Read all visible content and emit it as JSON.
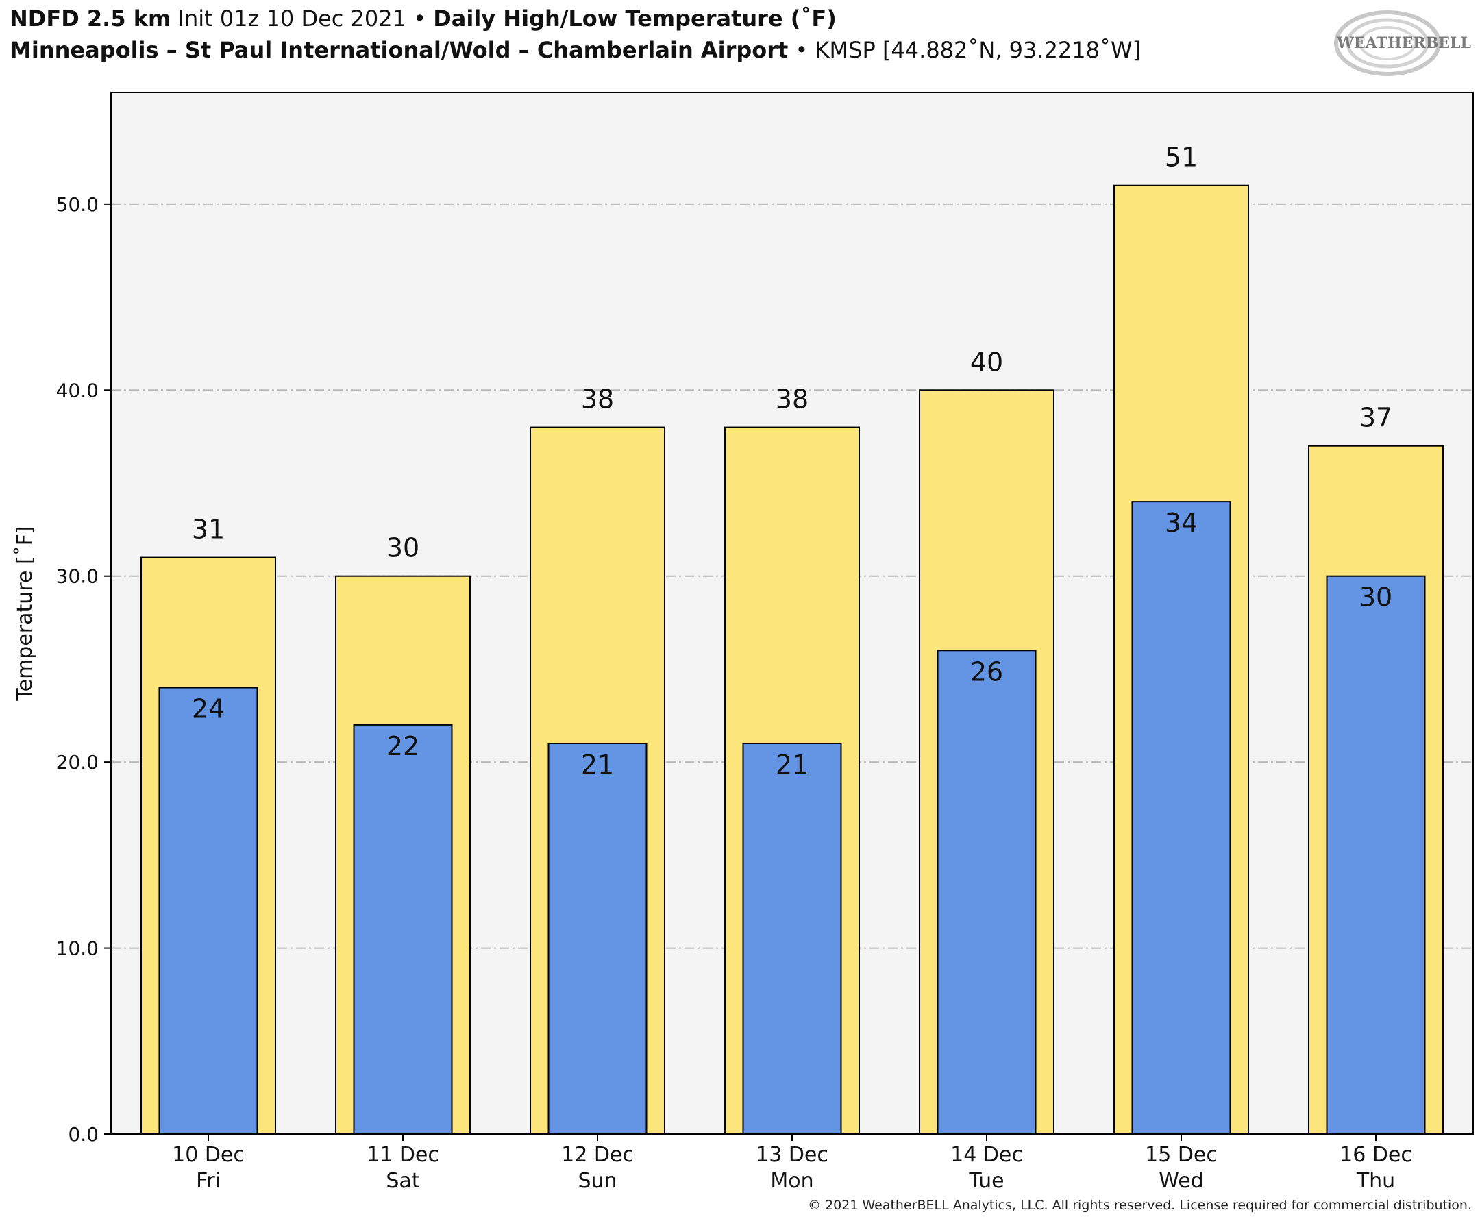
{
  "header": {
    "model": "NDFD 2.5 km",
    "init": "Init 01z 10 Dec 2021",
    "bullet": "•",
    "product": "Daily High/Low Temperature (˚F)",
    "station_name": "Minneapolis – St Paul International/Wold – Chamberlain Airport",
    "station_info": "KMSP [44.882˚N, 93.2218˚W]"
  },
  "logo": {
    "text": "WEATHERBELL",
    "icon": "weatherbell-swirl-logo"
  },
  "copyright": "© 2021 WeatherBELL Analytics, LLC. All rights reserved. License required for commercial distribution.",
  "colors": {
    "high": "#fce57a",
    "low": "#6495e5",
    "plot_bg": "#f4f4f4",
    "grid": "#b8b8b8"
  },
  "chart_data": {
    "type": "bar",
    "ylabel": "Temperature [˚F]",
    "ylim": [
      0,
      56
    ],
    "yticks": [
      0,
      10,
      20,
      30,
      40,
      50
    ],
    "ytick_labels": [
      "0.0",
      "10.0",
      "20.0",
      "30.0",
      "40.0",
      "50.0"
    ],
    "grid": true,
    "categories": [
      "10 Dec",
      "11 Dec",
      "12 Dec",
      "13 Dec",
      "14 Dec",
      "15 Dec",
      "16 Dec"
    ],
    "category_days": [
      "Fri",
      "Sat",
      "Sun",
      "Mon",
      "Tue",
      "Wed",
      "Thu"
    ],
    "series": [
      {
        "key": "high",
        "values": [
          31,
          30,
          38,
          38,
          40,
          51,
          37
        ]
      },
      {
        "key": "low",
        "values": [
          24,
          22,
          21,
          21,
          26,
          34,
          30
        ]
      }
    ]
  }
}
